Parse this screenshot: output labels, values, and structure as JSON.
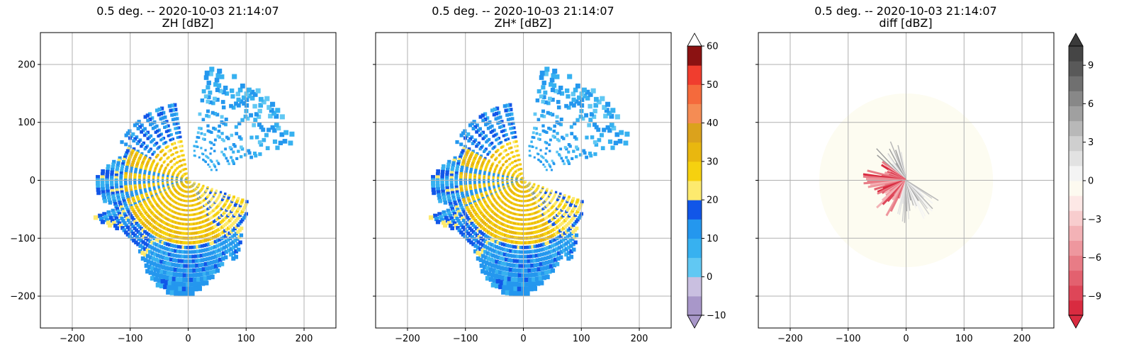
{
  "chart_data": [
    {
      "type": "heatmap",
      "title": "0.5 deg. -- 2020-10-03 21:14:07",
      "subtitle": "ZH [dBZ]",
      "xlim": [
        -255,
        255
      ],
      "ylim": [
        -255,
        255
      ],
      "xticks": [
        -200,
        -100,
        0,
        100,
        200
      ],
      "yticks": [
        -200,
        -100,
        0,
        100,
        200
      ],
      "xtick_labels": [
        "−200",
        "−100",
        "0",
        "100",
        "200"
      ],
      "ytick_labels": [
        "−200",
        "−100",
        "0",
        "100",
        "200"
      ],
      "grid": true
    },
    {
      "type": "heatmap",
      "title": "0.5 deg. -- 2020-10-03 21:14:07",
      "subtitle": "ZH* [dBZ]",
      "xlim": [
        -255,
        255
      ],
      "ylim": [
        -255,
        255
      ],
      "xticks": [
        -200,
        -100,
        0,
        100,
        200
      ],
      "xtick_labels": [
        "−200",
        "−100",
        "0",
        "100",
        "200"
      ],
      "grid": true,
      "colorbar": {
        "min": -10,
        "max": 60,
        "tick_labels": [
          "60",
          "50",
          "40",
          "30",
          "20",
          "10",
          "0",
          "−10"
        ],
        "colors": [
          "#a897c9",
          "#c9bfe0",
          "#61c8f3",
          "#37b1f0",
          "#2497ee",
          "#1156e8",
          "#fdea6e",
          "#f6d10f",
          "#e9b70f",
          "#dba21c",
          "#f58c54",
          "#f56a3c",
          "#f03d2e",
          "#8b1212"
        ]
      }
    },
    {
      "type": "heatmap",
      "title": "0.5 deg. -- 2020-10-03 21:14:07",
      "subtitle": "diff [dBZ]",
      "xlim": [
        -255,
        255
      ],
      "ylim": [
        -255,
        255
      ],
      "xticks": [
        -200,
        -100,
        0,
        100,
        200
      ],
      "xtick_labels": [
        "−200",
        "−100",
        "0",
        "100",
        "200"
      ],
      "grid": true,
      "colorbar": {
        "min": -10.5,
        "max": 10.5,
        "tick_labels": [
          "9",
          "6",
          "3",
          "0",
          "−3",
          "−6",
          "−9"
        ],
        "colors": [
          "#d92b40",
          "#de4658",
          "#e3616f",
          "#e87c86",
          "#ee979e",
          "#f3b2b6",
          "#f8cdce",
          "#fde8e6",
          "#fdfaf0",
          "#f4f4f4",
          "#e2e2e2",
          "#cfcfcf",
          "#b8b8b8",
          "#a0a0a0",
          "#888888",
          "#707070",
          "#595959",
          "#454545"
        ]
      }
    }
  ]
}
